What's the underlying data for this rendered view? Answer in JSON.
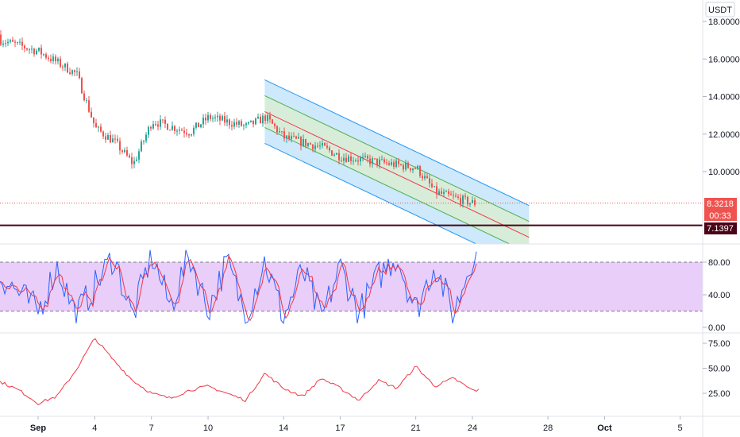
{
  "colors": {
    "up": "#26a69a",
    "down": "#ef5350",
    "channel_outer": "#2196f3",
    "channel_inner": "#4caf50",
    "channel_mid": "#f23645",
    "rsi_band_fill": "#e1bef7",
    "stoch_k": "#2962ff",
    "stoch_d": "#f23645",
    "line_series": "#f23645",
    "support_line": "#4a0418",
    "axis_text": "#131722",
    "grid": "#f0f3fa"
  },
  "price_axis": {
    "currency": "USDT",
    "ticks": [
      "18.0000",
      "16.0000",
      "14.0000",
      "12.0000",
      "10.0000"
    ]
  },
  "price_labels": {
    "last_price": "8.3218",
    "countdown": "00:33",
    "support_price": "7.1397"
  },
  "time_axis": {
    "ticks": [
      "Sep",
      "4",
      "7",
      "10",
      "14",
      "17",
      "21",
      "24",
      "28",
      "Oct",
      "5"
    ]
  },
  "oscillator_axis": {
    "ticks": [
      "80.00",
      "40.00",
      "0.00"
    ]
  },
  "lower_axis": {
    "ticks": [
      "75.00",
      "50.00",
      "25.00"
    ]
  },
  "chart_data": [
    {
      "type": "line",
      "panel": "price-candles",
      "x": [
        "Aug 29",
        "Sep 1",
        "Sep 3",
        "Sep 4",
        "Sep 5",
        "Sep 6",
        "Sep 7",
        "Sep 9",
        "Sep 10",
        "Sep 12",
        "Sep 13",
        "Sep 14",
        "Sep 16",
        "Sep 17",
        "Sep 19",
        "Sep 21",
        "Sep 22",
        "Sep 23",
        "Sep 24"
      ],
      "y": [
        17.3,
        16.4,
        15.2,
        12.3,
        11.6,
        10.4,
        12.7,
        12.1,
        12.9,
        12.4,
        12.9,
        11.8,
        11.3,
        10.8,
        10.5,
        10.2,
        8.9,
        8.6,
        8.32
      ],
      "ylim": [
        6.8,
        19.0
      ],
      "grid": false,
      "support_level": 7.1397,
      "last_price": 8.3218,
      "channel": {
        "start": {
          "x": "Sep 13",
          "y": 13.2
        },
        "end": {
          "x": "Sep 27",
          "y": 6.5
        }
      }
    },
    {
      "type": "line",
      "panel": "stochastic-oscillator",
      "x": [
        "Aug 29",
        "Sep 1",
        "Sep 2",
        "Sep 3",
        "Sep 4",
        "Sep 5",
        "Sep 6",
        "Sep 7",
        "Sep 8",
        "Sep 9",
        "Sep 10",
        "Sep 11",
        "Sep 12",
        "Sep 13",
        "Sep 14",
        "Sep 15",
        "Sep 16",
        "Sep 17",
        "Sep 18",
        "Sep 19",
        "Sep 20",
        "Sep 21",
        "Sep 22",
        "Sep 23",
        "Sep 24"
      ],
      "series": [
        {
          "values": [
            85,
            20,
            75,
            15,
            50,
            88,
            12,
            90,
            25,
            88,
            22,
            80,
            15,
            82,
            12,
            70,
            10,
            75,
            18,
            62,
            88,
            20,
            78,
            15,
            88
          ]
        }
      ],
      "bands": [
        20,
        80
      ],
      "ylim": [
        0,
        100
      ]
    },
    {
      "type": "line",
      "panel": "lower-indicator",
      "x": [
        "Aug 29",
        "Aug 31",
        "Sep 1",
        "Sep 2",
        "Sep 3",
        "Sep 4",
        "Sep 5",
        "Sep 6",
        "Sep 7",
        "Sep 8",
        "Sep 9",
        "Sep 10",
        "Sep 11",
        "Sep 12",
        "Sep 13",
        "Sep 14",
        "Sep 15",
        "Sep 16",
        "Sep 17",
        "Sep 18",
        "Sep 19",
        "Sep 20",
        "Sep 21",
        "Sep 22",
        "Sep 23",
        "Sep 24"
      ],
      "series": [
        {
          "values": [
            45,
            28,
            15,
            22,
            48,
            80,
            58,
            38,
            25,
            20,
            28,
            32,
            25,
            18,
            45,
            30,
            22,
            40,
            30,
            18,
            38,
            30,
            52,
            32,
            40,
            28
          ]
        }
      ],
      "ylim": [
        0,
        85
      ]
    }
  ]
}
